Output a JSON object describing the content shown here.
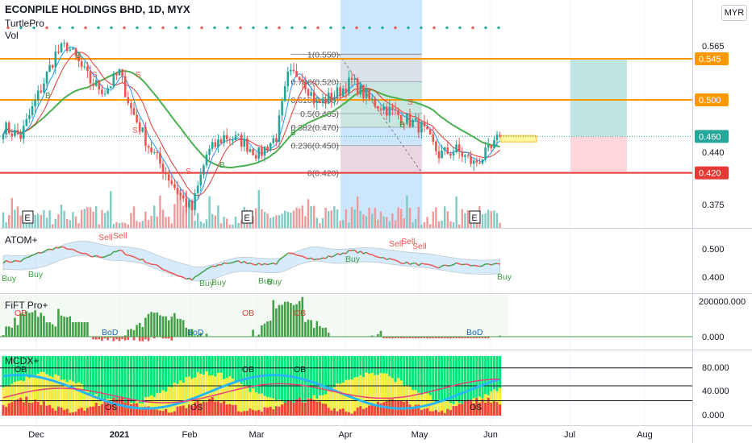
{
  "header": {
    "title": "ECONPILE HOLDINGS BHD, 1D, MYX",
    "indicator_1": "TurtlePro",
    "indicator_2": "Vol",
    "currency": "MYR"
  },
  "colors": {
    "up": "#26a69a",
    "down": "#ef5350",
    "green_ma": "#4caf50",
    "red_ma": "#e53935",
    "blue_ma": "#2196f3",
    "orange_line": "#ff9800",
    "red_line": "#e53935",
    "atom_band": "#bbdefb",
    "fib_gray": "#e0e0e0",
    "fib_green": "#c8e6c9",
    "fib_red": "#ffcdd2",
    "highlight_blue": "#bbdefb",
    "target_green": "#b2dfdb",
    "stop_red": "#ffcdd2",
    "mcdx_green": "#00e676",
    "mcdx_yellow": "#ffeb3b",
    "mcdx_red": "#f44336"
  },
  "chart_data": [
    {
      "name": "price",
      "type": "candlestick",
      "x_tick_labels": [
        "Dec",
        "2021",
        "Feb",
        "Mar",
        "Apr",
        "May",
        "Jun",
        "Jul",
        "Aug"
      ],
      "y_tick_labels": [
        "0.565",
        "0.440",
        "0.375"
      ],
      "price_badges": [
        {
          "value": "0.545",
          "color": "orange"
        },
        {
          "value": "0.500",
          "color": "orange"
        },
        {
          "value": "0.460",
          "color": "green"
        },
        {
          "value": "0.420",
          "color": "red"
        }
      ],
      "horizontal_lines": [
        {
          "value": 0.545,
          "color": "orange"
        },
        {
          "value": 0.5,
          "color": "orange"
        },
        {
          "value": 0.42,
          "color": "red"
        }
      ],
      "last_price": 0.46,
      "fib_levels": [
        {
          "label": "1(0.550)",
          "value": 0.55
        },
        {
          "label": "0.786(0.520)",
          "value": 0.52
        },
        {
          "label": "0.618(0.500)",
          "value": 0.5
        },
        {
          "label": "0.5(0.485)",
          "value": 0.485
        },
        {
          "label": "0.382(0.470)",
          "value": 0.47
        },
        {
          "label": "0.236(0.450)",
          "value": 0.45
        },
        {
          "label": "0(0.420)",
          "value": 0.42
        }
      ],
      "earnings_markers": [
        "E",
        "E",
        "E"
      ],
      "signal_labels": [
        "B",
        "S",
        "B",
        "S",
        "S",
        "S",
        "B",
        "B",
        "B",
        "S"
      ]
    },
    {
      "name": "ATOM+",
      "type": "line",
      "y_tick_labels": [
        "0.500",
        "0.400"
      ],
      "signals": [
        "Buy",
        "Buy",
        "Sell",
        "Sell",
        "Buy",
        "Buy",
        "Buy",
        "Buy",
        "Buy",
        "Sell",
        "Sell",
        "Sell",
        "Buy"
      ]
    },
    {
      "name": "FiFT Pro+",
      "type": "bar",
      "y_tick_labels": [
        "200000.000",
        "0.000"
      ],
      "annotations": [
        "OB",
        "OB",
        "OB",
        "BoD",
        "BoD",
        "BoD"
      ]
    },
    {
      "name": "MCDX+",
      "type": "bar",
      "y_tick_labels": [
        "80.000",
        "40.000",
        "0.000"
      ],
      "annotations": [
        "OB",
        "OB",
        "OB",
        "OS",
        "OS",
        "OS"
      ]
    }
  ]
}
